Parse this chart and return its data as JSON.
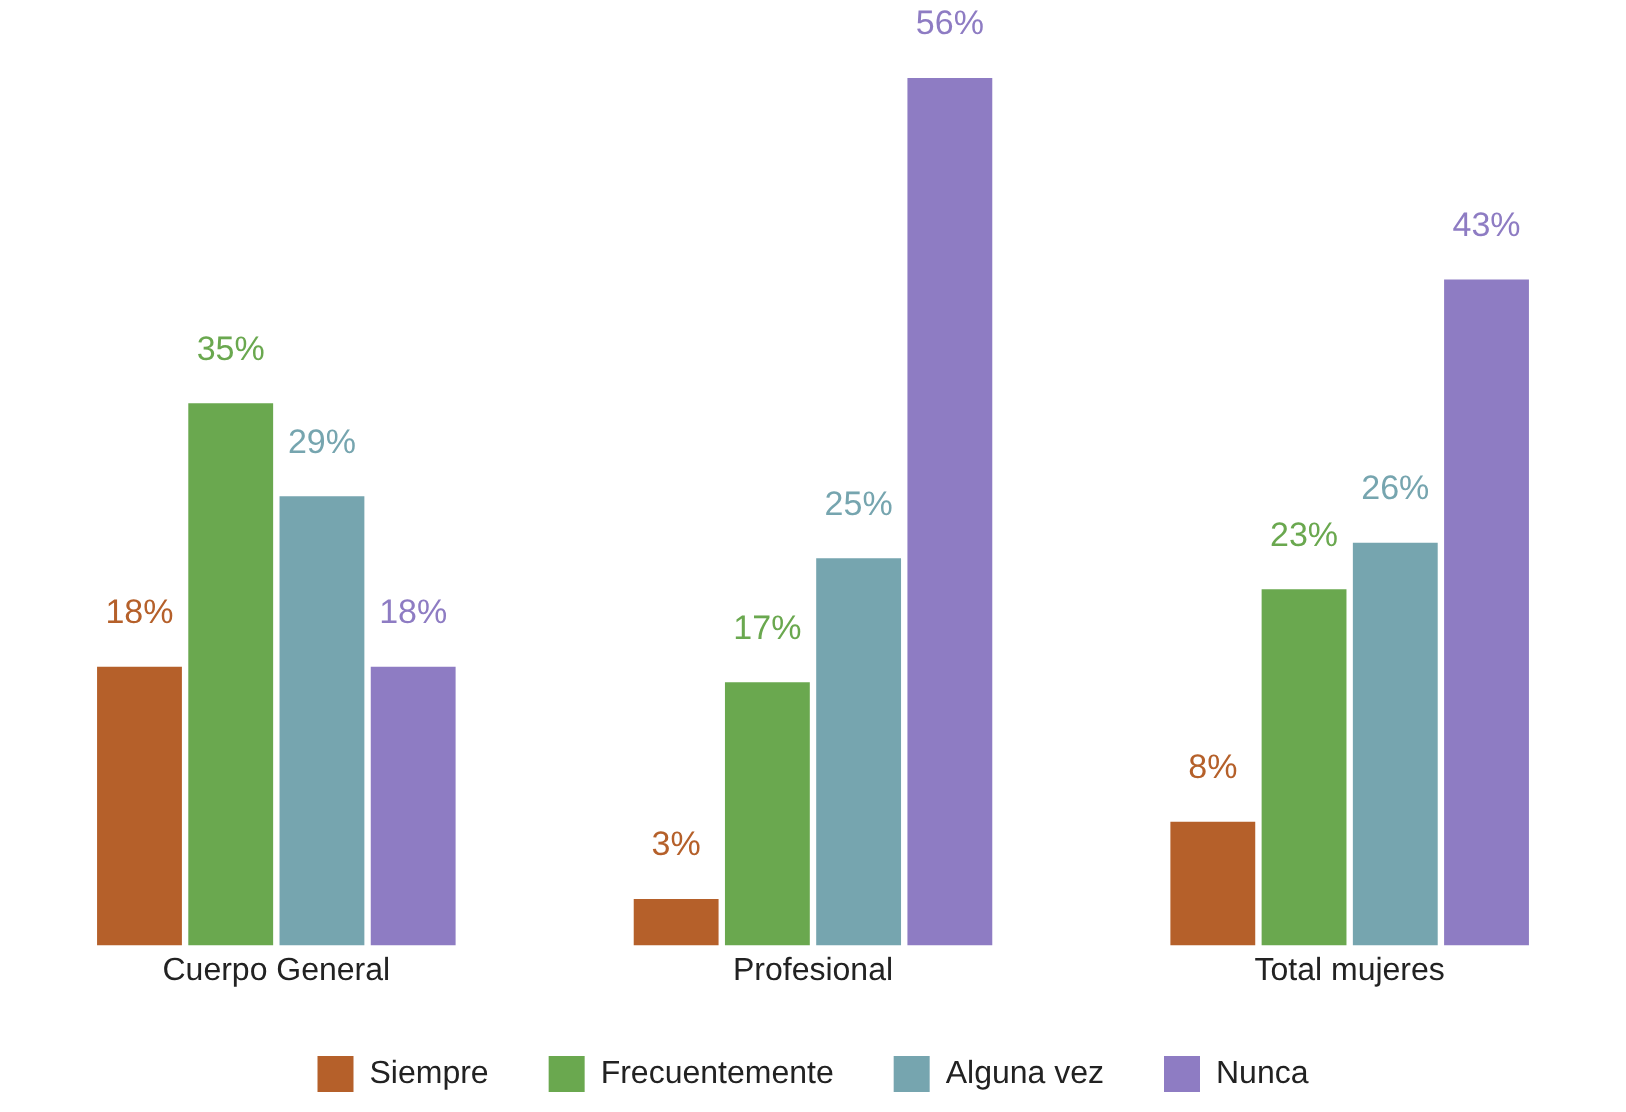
{
  "chart_data": {
    "type": "bar",
    "categories": [
      "Cuerpo General",
      "Profesional",
      "Total mujeres"
    ],
    "series": [
      {
        "name": "Siempre",
        "color": "#b5602a",
        "values": [
          18,
          3,
          8
        ],
        "value_labels": [
          "18%",
          "3%",
          "8%"
        ]
      },
      {
        "name": "Frecuentemente",
        "color": "#6aa84f",
        "values": [
          35,
          17,
          23
        ],
        "value_labels": [
          "35%",
          "17%",
          "23%"
        ]
      },
      {
        "name": "Alguna vez",
        "color": "#76a5af",
        "values": [
          29,
          25,
          26
        ],
        "value_labels": [
          "29%",
          "25%",
          "26%"
        ]
      },
      {
        "name": "Nunca",
        "color": "#8e7cc3",
        "values": [
          18,
          56,
          43
        ],
        "value_labels": [
          "18%",
          "56%",
          "43%"
        ]
      }
    ],
    "tick_labels": "x",
    "grid": false,
    "legend": "bottom"
  }
}
